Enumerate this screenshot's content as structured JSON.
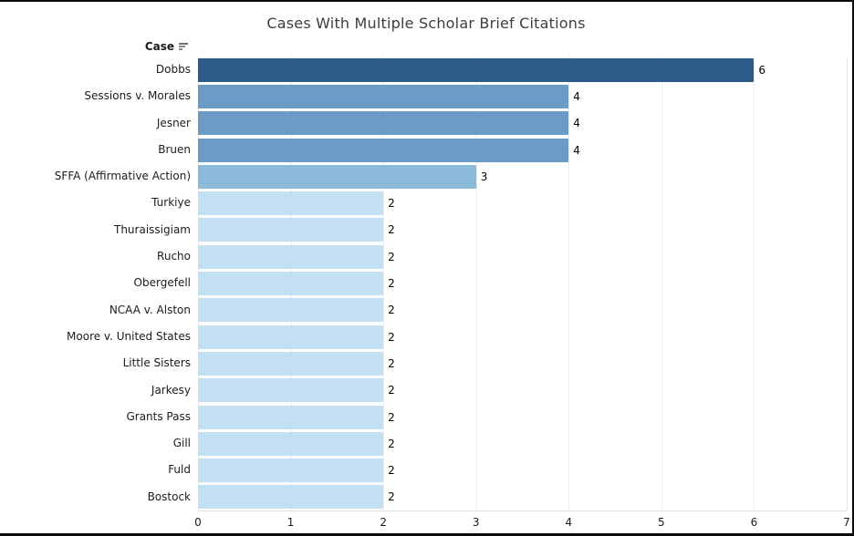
{
  "title": "Cases With Multiple Scholar Brief Citations",
  "column_header": {
    "label": "Case",
    "sort_icon": "sort-descending-icon"
  },
  "chart_data": {
    "type": "bar",
    "orientation": "horizontal",
    "title": "Cases With Multiple Scholar Brief Citations",
    "xlabel": "",
    "ylabel": "Case",
    "xlim": [
      0,
      7
    ],
    "x_ticks": [
      0,
      1,
      2,
      3,
      4,
      5,
      6,
      7
    ],
    "grid": true,
    "categories": [
      "Dobbs",
      "Sessions v. Morales",
      "Jesner",
      "Bruen",
      "SFFA (Affirmative Action)",
      "Turkiye",
      "Thuraissigiam",
      "Rucho",
      "Obergefell",
      "NCAA v. Alston",
      "Moore v. United States",
      "Little Sisters",
      "Jarkesy",
      "Grants Pass",
      "Gill",
      "Fuld",
      "Bostock"
    ],
    "values": [
      6,
      4,
      4,
      4,
      3,
      2,
      2,
      2,
      2,
      2,
      2,
      2,
      2,
      2,
      2,
      2,
      2
    ],
    "bar_labels": [
      "6",
      "4",
      "4",
      "4",
      "3",
      "2",
      "2",
      "2",
      "2",
      "2",
      "2",
      "2",
      "2",
      "2",
      "2",
      "2",
      "2"
    ],
    "colors_by_value": {
      "6": "#2d5c8a",
      "4": "#6b9cc6",
      "3": "#8cbada",
      "2": "#c3e0f2"
    }
  },
  "colors": {
    "title_text": "#3d3d3d",
    "label_text": "#1b1b1b",
    "value_text": "#000000",
    "gridline": "#ececec",
    "axis_line": "#e0e0e0",
    "frame_border": "#0b0b0b"
  }
}
